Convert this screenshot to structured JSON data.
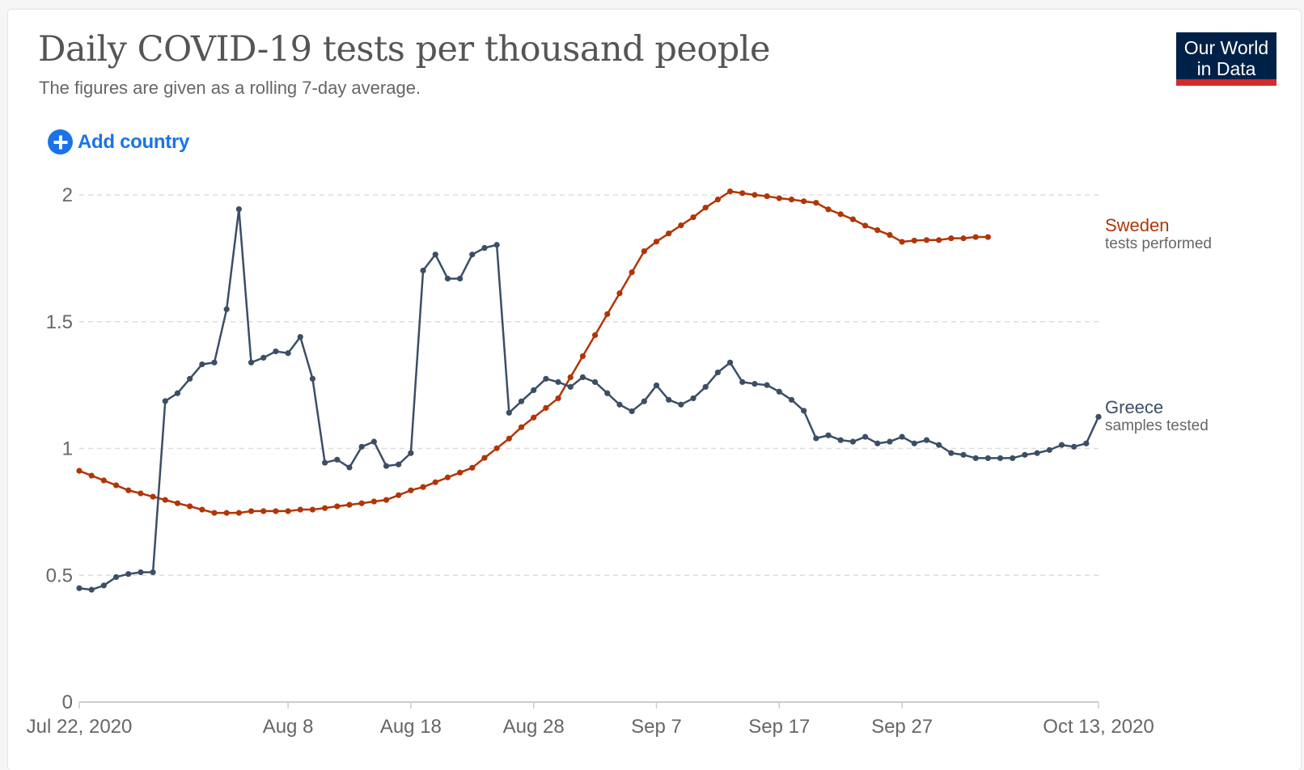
{
  "header": {
    "title": "Daily COVID-19 tests per thousand people",
    "subtitle": "The figures are given as a rolling 7-day average.",
    "add_country_label": "Add country",
    "logo_line1": "Our World",
    "logo_line2": "in Data"
  },
  "chart_data": {
    "type": "line",
    "title": "Daily COVID-19 tests per thousand people",
    "subtitle": "The figures are given as a rolling 7-day average.",
    "xlabel": "",
    "ylabel": "",
    "x_unit": "days since Jul 22, 2020",
    "xlim": [
      0,
      83
    ],
    "ylim": [
      0,
      2
    ],
    "grid": true,
    "y_ticks": [
      {
        "value": 0,
        "label": "0"
      },
      {
        "value": 0.5,
        "label": "0.5"
      },
      {
        "value": 1,
        "label": "1"
      },
      {
        "value": 1.5,
        "label": "1.5"
      },
      {
        "value": 2,
        "label": "2"
      }
    ],
    "x_ticks": [
      {
        "value": 0,
        "label": "Jul 22, 2020"
      },
      {
        "value": 17,
        "label": "Aug 8"
      },
      {
        "value": 27,
        "label": "Aug 18"
      },
      {
        "value": 37,
        "label": "Aug 28"
      },
      {
        "value": 47,
        "label": "Sep 7"
      },
      {
        "value": 57,
        "label": "Sep 17"
      },
      {
        "value": 67,
        "label": "Sep 27"
      },
      {
        "value": 83,
        "label": "Oct 13, 2020"
      }
    ],
    "legend_placement": "right (line-end labels)",
    "series": [
      {
        "name": "Sweden",
        "sublabel": "tests performed",
        "color": "#b13507",
        "x_start": 0,
        "values": [
          0.912,
          0.893,
          0.874,
          0.855,
          0.835,
          0.823,
          0.81,
          0.797,
          0.784,
          0.772,
          0.759,
          0.746,
          0.746,
          0.746,
          0.753,
          0.753,
          0.753,
          0.753,
          0.759,
          0.759,
          0.765,
          0.772,
          0.778,
          0.784,
          0.791,
          0.797,
          0.816,
          0.835,
          0.848,
          0.867,
          0.886,
          0.905,
          0.924,
          0.963,
          1.001,
          1.039,
          1.084,
          1.122,
          1.16,
          1.198,
          1.281,
          1.364,
          1.447,
          1.53,
          1.612,
          1.695,
          1.778,
          1.816,
          1.848,
          1.88,
          1.912,
          1.95,
          1.982,
          2.014,
          2.007,
          2.0,
          1.995,
          1.987,
          1.982,
          1.975,
          1.969,
          1.943,
          1.924,
          1.904,
          1.879,
          1.861,
          1.842,
          1.815,
          1.82,
          1.822,
          1.822,
          1.829,
          1.829,
          1.834,
          1.834
        ]
      },
      {
        "name": "Greece",
        "sublabel": "samples tested",
        "color": "#3c4e66",
        "x_start": 0,
        "values": [
          0.449,
          0.443,
          0.46,
          0.493,
          0.505,
          0.512,
          0.512,
          1.187,
          1.218,
          1.275,
          1.332,
          1.339,
          1.549,
          1.944,
          1.339,
          1.358,
          1.383,
          1.376,
          1.44,
          1.275,
          0.944,
          0.956,
          0.925,
          1.007,
          1.027,
          0.931,
          0.937,
          0.982,
          1.702,
          1.765,
          1.67,
          1.67,
          1.765,
          1.791,
          1.803,
          1.141,
          1.186,
          1.23,
          1.275,
          1.262,
          1.243,
          1.281,
          1.262,
          1.218,
          1.173,
          1.147,
          1.186,
          1.249,
          1.192,
          1.173,
          1.198,
          1.243,
          1.3,
          1.339,
          1.262,
          1.255,
          1.25,
          1.224,
          1.192,
          1.149,
          1.04,
          1.052,
          1.033,
          1.027,
          1.046,
          1.02,
          1.027,
          1.046,
          1.02,
          1.033,
          1.014,
          0.982,
          0.975,
          0.962,
          0.962,
          0.962,
          0.962,
          0.975,
          0.982,
          0.994,
          1.014,
          1.007,
          1.02,
          1.125
        ]
      }
    ]
  }
}
